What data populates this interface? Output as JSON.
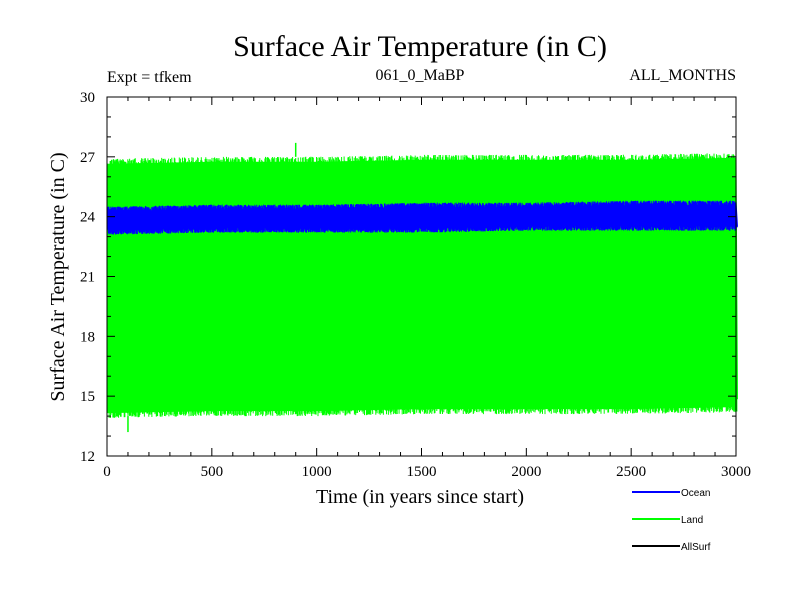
{
  "chart_data": {
    "type": "line",
    "title": "Surface Air Temperature (in C)",
    "header_left": "Expt = tfkem",
    "header_center": "061_0_MaBP",
    "header_right": "ALL_MONTHS",
    "xlabel": "Time (in years since start)",
    "ylabel": "Surface Air Temperature (in C)",
    "xlim": [
      0,
      3000
    ],
    "ylim": [
      12,
      30
    ],
    "x_ticks": [
      0,
      500,
      1000,
      1500,
      2000,
      2500,
      3000
    ],
    "y_ticks": [
      12,
      15,
      18,
      21,
      24,
      27,
      30
    ],
    "x_tick_labels": [
      "0",
      "500",
      "1000",
      "1500",
      "2000",
      "2500",
      "3000"
    ],
    "y_tick_labels": [
      "12",
      "15",
      "18",
      "21",
      "24",
      "27",
      "30"
    ],
    "grid": false,
    "legend_position": "below-right",
    "series": [
      {
        "name": "Land",
        "color": "#00ff00",
        "band_min": [
          13.9,
          14.0,
          14.0,
          14.1,
          14.1,
          14.1,
          14.2
        ],
        "band_max": [
          26.9,
          27.0,
          27.0,
          27.1,
          27.1,
          27.1,
          27.2
        ],
        "typical_low": 14.0,
        "typical_high": 27.0,
        "peak": {
          "x": 900,
          "y": 27.7
        },
        "trough": {
          "x": 100,
          "y": 13.2
        }
      },
      {
        "name": "Ocean",
        "color": "#0000ff",
        "band_min": [
          23.1,
          23.2,
          23.2,
          23.2,
          23.3,
          23.3,
          23.3
        ],
        "band_max": [
          24.5,
          24.6,
          24.6,
          24.7,
          24.7,
          24.8,
          24.8
        ],
        "typical_low": 23.2,
        "typical_high": 24.6
      },
      {
        "name": "AllSurf",
        "color": "#000000"
      }
    ]
  }
}
